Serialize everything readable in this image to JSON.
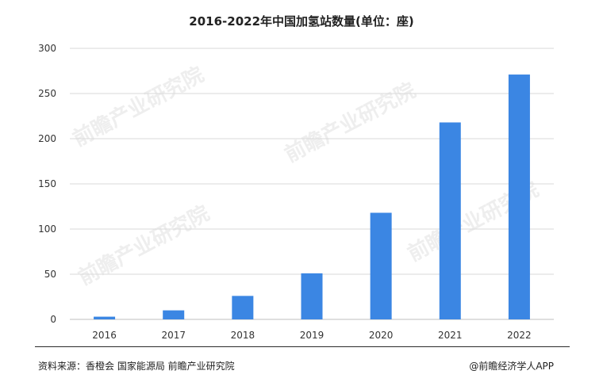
{
  "chart_data": {
    "type": "bar",
    "title": "2016-2022年中国加氢站数量(单位：座)",
    "categories": [
      "2016",
      "2017",
      "2018",
      "2019",
      "2020",
      "2021",
      "2022"
    ],
    "series": [
      {
        "values": [
          3,
          10,
          26,
          51,
          118,
          218,
          271
        ]
      }
    ],
    "ylim": [
      0,
      300
    ],
    "yticks": [
      0,
      50,
      100,
      150,
      200,
      250,
      300
    ],
    "grid": true,
    "legend": "none",
    "bar_color": "#3b86e3"
  },
  "watermark": "前瞻产业研究院",
  "footer": {
    "source": "资料来源：香橙会 国家能源局 前瞻产业研究院",
    "credit": "@前瞻经济学人APP"
  }
}
